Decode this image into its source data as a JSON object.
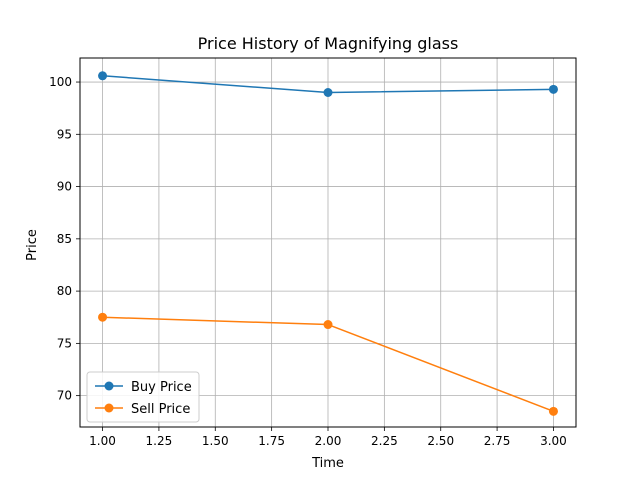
{
  "chart_data": {
    "type": "line",
    "title": "Price History of Magnifying glass",
    "xlabel": "Time",
    "ylabel": "Price",
    "xlim": [
      0.9,
      3.1
    ],
    "ylim": [
      67.0,
      102.3
    ],
    "x_ticks": [
      1.0,
      1.25,
      1.5,
      1.75,
      2.0,
      2.25,
      2.5,
      2.75,
      3.0
    ],
    "x_tick_labels": [
      "1.00",
      "1.25",
      "1.50",
      "1.75",
      "2.00",
      "2.25",
      "2.50",
      "2.75",
      "3.00"
    ],
    "y_ticks": [
      70,
      75,
      80,
      85,
      90,
      95,
      100
    ],
    "y_tick_labels": [
      "70",
      "75",
      "80",
      "85",
      "90",
      "95",
      "100"
    ],
    "grid": true,
    "legend_position": "lower-left",
    "series": [
      {
        "name": "Buy Price",
        "color": "#1f77b4",
        "marker": "circle",
        "x": [
          1,
          2,
          3
        ],
        "values": [
          100.6,
          99.0,
          99.3
        ]
      },
      {
        "name": "Sell Price",
        "color": "#ff7f0e",
        "marker": "circle",
        "x": [
          1,
          2,
          3
        ],
        "values": [
          77.5,
          76.8,
          68.5
        ]
      }
    ]
  }
}
